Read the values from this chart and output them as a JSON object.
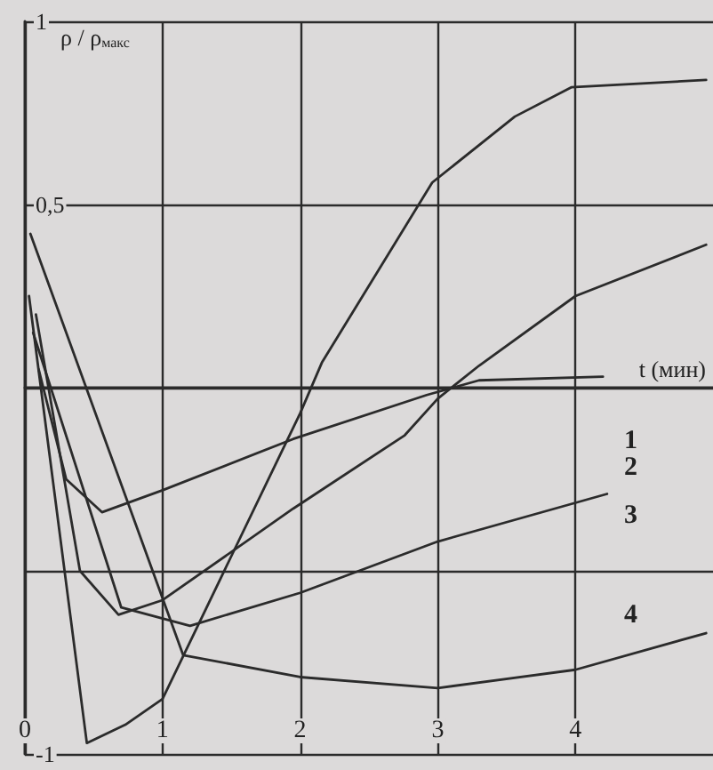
{
  "chart_data": {
    "type": "line",
    "xlabel": "t (мин)",
    "ylabel": "ρ / ρ$_{макс}$",
    "xlim": [
      0,
      5
    ],
    "xticks": [
      0,
      1,
      2,
      3,
      4
    ],
    "ylim": [
      -1,
      1
    ],
    "yticks": [
      {
        "value": 1,
        "label": "1"
      },
      {
        "value": 0.5,
        "label": "0,5"
      },
      {
        "value": 0,
        "label": null
      },
      {
        "value": -0.5,
        "label": null
      },
      {
        "value": -1,
        "label": "-1"
      }
    ],
    "grid": true,
    "marker": "none",
    "line_style": "solid",
    "series": [
      {
        "color": "#2b2b2b",
        "x": [
          0.1,
          0.3,
          0.56,
          1,
          1.95,
          2.92,
          3.3,
          4.2
        ],
        "values": [
          0.05,
          -0.25,
          -0.34,
          -0.28,
          -0.14,
          -0.02,
          0.02,
          0.03
        ]
      },
      {
        "color": "#2b2b2b",
        "x": [
          0.08,
          0.4,
          0.68,
          1,
          1.95,
          2.76,
          3,
          3.3,
          4,
          4.95
        ],
        "values": [
          0.2,
          -0.5,
          -0.62,
          -0.58,
          -0.33,
          -0.13,
          -0.03,
          0.06,
          0.25,
          0.39
        ]
      },
      {
        "color": "#2b2b2b",
        "x": [
          0.06,
          0.7,
          1.2,
          2,
          3,
          4.23
        ],
        "values": [
          0.15,
          -0.6,
          -0.65,
          -0.56,
          -0.42,
          -0.29
        ]
      },
      {
        "color": "#2b2b2b",
        "x": [
          0.04,
          1.15,
          2,
          3,
          4,
          4.95
        ],
        "values": [
          0.42,
          -0.73,
          -0.79,
          -0.82,
          -0.77,
          -0.67
        ]
      },
      {
        "color": "#2b2b2b",
        "x": [
          0.03,
          0.45,
          0.73,
          1,
          2,
          2.16,
          2.96,
          3.56,
          3.97,
          4.95
        ],
        "values": [
          0.25,
          -0.97,
          -0.92,
          -0.85,
          -0.07,
          0.07,
          0.56,
          0.74,
          0.82,
          0.84
        ]
      }
    ],
    "annotations": [
      "1",
      "2",
      "3",
      "4"
    ]
  }
}
